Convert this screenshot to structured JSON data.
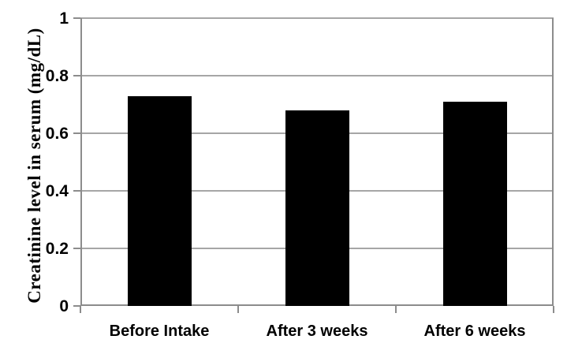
{
  "chart_data": {
    "type": "bar",
    "title": "",
    "xlabel": "",
    "ylabel": "Creatinine level in serum (mg/dL)",
    "categories": [
      "Before Intake",
      "After 3 weeks",
      "After 6 weeks"
    ],
    "values": [
      0.73,
      0.68,
      0.71
    ],
    "series_color": "#000000",
    "ylim": [
      0,
      1
    ],
    "yticks": [
      0,
      0.2,
      0.4,
      0.6,
      0.8,
      1
    ],
    "ytick_labels": [
      "0",
      "0.2",
      "0.4",
      "0.6",
      "0.8",
      "1"
    ],
    "grid": true,
    "gridline_color": "#a6a6a6",
    "axis_color": "#8c8c8c",
    "plot_border_right": true,
    "legend": false,
    "background_color": "#ffffff"
  }
}
